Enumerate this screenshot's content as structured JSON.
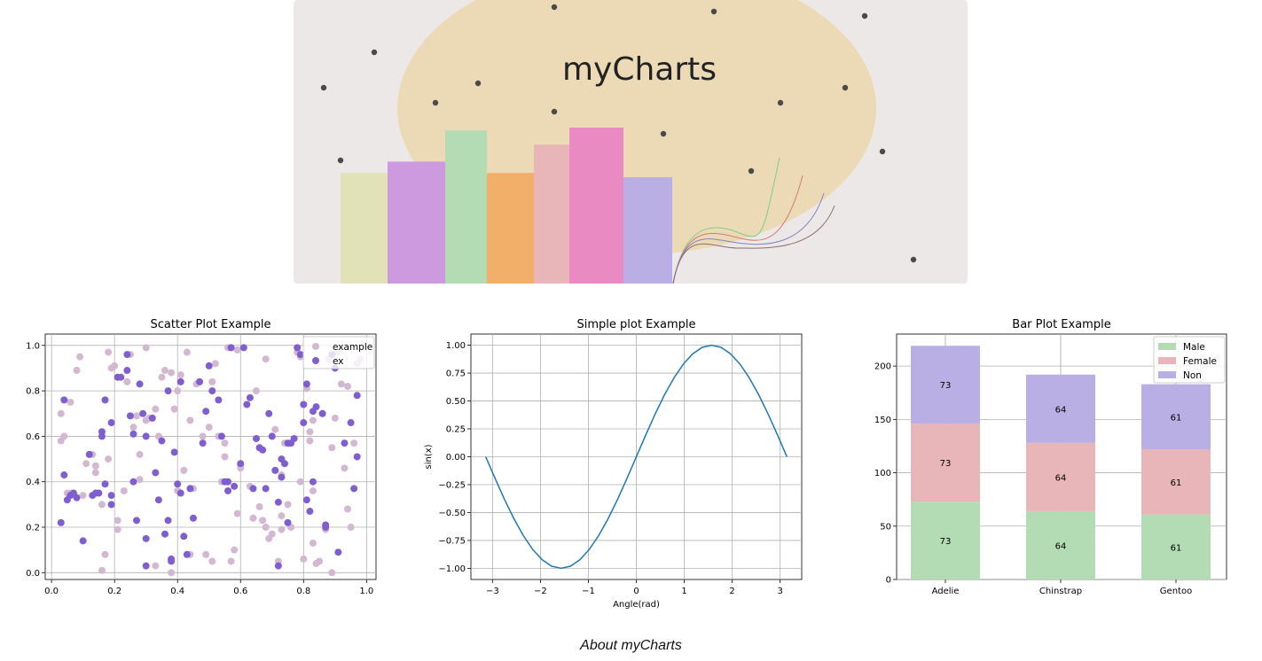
{
  "banner": {
    "title": "myCharts",
    "colors": {
      "background": "#ede8e8",
      "ellipse": "#ecdab6"
    },
    "bars": [
      {
        "value": 0.39,
        "color": "#e2e2b8"
      },
      {
        "value": 0.43,
        "color": "#cd99df"
      },
      {
        "value": 0.54,
        "color": "#b3dcb4"
      },
      {
        "value": 0.39,
        "color": "#f1af6a"
      },
      {
        "value": 0.49,
        "color": "#e8b6b8"
      },
      {
        "value": 0.55,
        "color": "#e98ac3"
      },
      {
        "value": 0.375,
        "color": "#b9afe4"
      }
    ],
    "curve_colors": [
      "#7ccf86",
      "#d17a78",
      "#8580c2",
      "#8c6a74"
    ]
  },
  "chart_data": [
    {
      "type": "scatter",
      "title": "Scatter Plot Example",
      "xlim": [
        -0.02,
        1.03
      ],
      "ylim": [
        -0.03,
        1.05
      ],
      "xticks": [
        0.0,
        0.2,
        0.4,
        0.6,
        0.8,
        1.0
      ],
      "yticks": [
        0.0,
        0.2,
        0.4,
        0.6,
        0.8,
        1.0
      ],
      "xtick_labels": [
        "0.0",
        "0.2",
        "0.4",
        "0.6",
        "0.8",
        "1.0"
      ],
      "ytick_labels": [
        "0.0",
        "0.2",
        "0.4",
        "0.6",
        "0.8",
        "1.0"
      ],
      "grid": true,
      "legend": "top-right",
      "series": [
        {
          "name": "example",
          "color": "#d3b8d2",
          "points": [
            [
              0.03,
              0.58
            ],
            [
              0.03,
              0.7
            ],
            [
              0.04,
              0.6
            ],
            [
              0.05,
              0.35
            ],
            [
              0.06,
              0.35
            ],
            [
              0.06,
              0.75
            ],
            [
              0.08,
              0.89
            ],
            [
              0.09,
              0.95
            ],
            [
              0.1,
              0.34
            ],
            [
              0.11,
              0.48
            ],
            [
              0.13,
              0.52
            ],
            [
              0.14,
              0.47
            ],
            [
              0.14,
              0.44
            ],
            [
              0.16,
              0.01
            ],
            [
              0.16,
              0.3
            ],
            [
              0.17,
              0.08
            ],
            [
              0.18,
              0.5
            ],
            [
              0.18,
              0.97
            ],
            [
              0.19,
              0.9
            ],
            [
              0.2,
              0.91
            ],
            [
              0.21,
              0.23
            ],
            [
              0.21,
              0.19
            ],
            [
              0.23,
              0.36
            ],
            [
              0.24,
              0.84
            ],
            [
              0.25,
              0.96
            ],
            [
              0.26,
              0.64
            ],
            [
              0.27,
              0.69
            ],
            [
              0.28,
              0.41
            ],
            [
              0.28,
              0.52
            ],
            [
              0.3,
              0.67
            ],
            [
              0.3,
              0.99
            ],
            [
              0.31,
              0.68
            ],
            [
              0.33,
              0.03
            ],
            [
              0.33,
              0.72
            ],
            [
              0.34,
              0.6
            ],
            [
              0.35,
              0.86
            ],
            [
              0.36,
              0.89
            ],
            [
              0.38,
              0.0
            ],
            [
              0.38,
              0.88
            ],
            [
              0.39,
              0.72
            ],
            [
              0.4,
              0.36
            ],
            [
              0.4,
              0.8
            ],
            [
              0.41,
              0.87
            ],
            [
              0.42,
              0.45
            ],
            [
              0.43,
              0.97
            ],
            [
              0.44,
              0.67
            ],
            [
              0.44,
              0.08
            ],
            [
              0.45,
              0.37
            ],
            [
              0.46,
              0.83
            ],
            [
              0.48,
              0.6
            ],
            [
              0.49,
              0.08
            ],
            [
              0.5,
              0.64
            ],
            [
              0.51,
              0.84
            ],
            [
              0.51,
              0.05
            ],
            [
              0.52,
              0.92
            ],
            [
              0.53,
              0.6
            ],
            [
              0.54,
              0.4
            ],
            [
              0.55,
              0.57
            ],
            [
              0.55,
              0.51
            ],
            [
              0.56,
              0.99
            ],
            [
              0.57,
              0.05
            ],
            [
              0.58,
              0.1
            ],
            [
              0.59,
              0.26
            ],
            [
              0.59,
              0.98
            ],
            [
              0.6,
              0.46
            ],
            [
              0.6,
              0.47
            ],
            [
              0.63,
              0.38
            ],
            [
              0.64,
              0.24
            ],
            [
              0.65,
              0.8
            ],
            [
              0.66,
              0.29
            ],
            [
              0.67,
              0.23
            ],
            [
              0.68,
              0.2
            ],
            [
              0.68,
              0.94
            ],
            [
              0.69,
              0.15
            ],
            [
              0.7,
              0.17
            ],
            [
              0.71,
              0.63
            ],
            [
              0.72,
              0.05
            ],
            [
              0.73,
              0.19
            ],
            [
              0.73,
              0.25
            ],
            [
              0.73,
              0.43
            ],
            [
              0.74,
              0.57
            ],
            [
              0.75,
              0.3
            ],
            [
              0.76,
              0.2
            ],
            [
              0.78,
              0.97
            ],
            [
              0.79,
              0.95
            ],
            [
              0.79,
              0.4
            ],
            [
              0.8,
              0.06
            ],
            [
              0.81,
              0.81
            ],
            [
              0.82,
              0.58
            ],
            [
              0.82,
              0.62
            ],
            [
              0.83,
              0.13
            ],
            [
              0.83,
              0.36
            ],
            [
              0.83,
              0.67
            ],
            [
              0.84,
              0.04
            ],
            [
              0.85,
              0.05
            ],
            [
              0.86,
              0.7
            ],
            [
              0.87,
              0.19
            ],
            [
              0.88,
              0.94
            ],
            [
              0.89,
              0.0
            ],
            [
              0.89,
              0.55
            ],
            [
              0.9,
              0.68
            ],
            [
              0.91,
              0.97
            ],
            [
              0.92,
              0.83
            ],
            [
              0.93,
              0.46
            ],
            [
              0.94,
              0.28
            ],
            [
              0.94,
              0.82
            ],
            [
              0.95,
              0.2
            ],
            [
              0.96,
              0.57
            ],
            [
              0.97,
              0.92
            ],
            [
              0.98,
              0.94
            ]
          ]
        },
        {
          "name": "ex",
          "color": "#7f5fd0",
          "points": [
            [
              0.03,
              0.22
            ],
            [
              0.04,
              0.43
            ],
            [
              0.04,
              0.76
            ],
            [
              0.05,
              0.32
            ],
            [
              0.06,
              0.34
            ],
            [
              0.07,
              0.35
            ],
            [
              0.08,
              0.33
            ],
            [
              0.1,
              0.14
            ],
            [
              0.12,
              0.52
            ],
            [
              0.13,
              0.34
            ],
            [
              0.14,
              0.35
            ],
            [
              0.15,
              0.35
            ],
            [
              0.16,
              0.6
            ],
            [
              0.16,
              0.62
            ],
            [
              0.17,
              0.39
            ],
            [
              0.17,
              0.76
            ],
            [
              0.19,
              0.34
            ],
            [
              0.19,
              0.66
            ],
            [
              0.19,
              0.3
            ],
            [
              0.21,
              0.86
            ],
            [
              0.22,
              0.86
            ],
            [
              0.24,
              0.96
            ],
            [
              0.24,
              0.89
            ],
            [
              0.25,
              0.69
            ],
            [
              0.26,
              0.61
            ],
            [
              0.26,
              0.4
            ],
            [
              0.27,
              0.23
            ],
            [
              0.28,
              0.83
            ],
            [
              0.29,
              0.7
            ],
            [
              0.3,
              0.6
            ],
            [
              0.3,
              0.15
            ],
            [
              0.3,
              0.03
            ],
            [
              0.32,
              0.68
            ],
            [
              0.33,
              0.44
            ],
            [
              0.34,
              0.32
            ],
            [
              0.35,
              0.58
            ],
            [
              0.36,
              0.17
            ],
            [
              0.37,
              0.8
            ],
            [
              0.37,
              0.23
            ],
            [
              0.38,
              0.06
            ],
            [
              0.38,
              0.05
            ],
            [
              0.39,
              0.53
            ],
            [
              0.4,
              0.39
            ],
            [
              0.41,
              0.35
            ],
            [
              0.41,
              0.84
            ],
            [
              0.42,
              0.16
            ],
            [
              0.43,
              0.08
            ],
            [
              0.44,
              0.37
            ],
            [
              0.45,
              0.24
            ],
            [
              0.47,
              0.84
            ],
            [
              0.48,
              0.57
            ],
            [
              0.49,
              0.71
            ],
            [
              0.5,
              0.91
            ],
            [
              0.51,
              0.8
            ],
            [
              0.53,
              0.76
            ],
            [
              0.54,
              0.6
            ],
            [
              0.55,
              0.4
            ],
            [
              0.56,
              0.4
            ],
            [
              0.56,
              0.36
            ],
            [
              0.57,
              0.99
            ],
            [
              0.58,
              0.38
            ],
            [
              0.6,
              0.48
            ],
            [
              0.61,
              0.99
            ],
            [
              0.62,
              0.74
            ],
            [
              0.63,
              0.77
            ],
            [
              0.64,
              0.37
            ],
            [
              0.65,
              0.59
            ],
            [
              0.66,
              0.55
            ],
            [
              0.67,
              0.54
            ],
            [
              0.68,
              0.37
            ],
            [
              0.69,
              0.7
            ],
            [
              0.7,
              0.6
            ],
            [
              0.71,
              0.45
            ],
            [
              0.72,
              0.03
            ],
            [
              0.72,
              0.31
            ],
            [
              0.73,
              0.42
            ],
            [
              0.73,
              0.5
            ],
            [
              0.74,
              0.48
            ],
            [
              0.75,
              0.57
            ],
            [
              0.75,
              0.22
            ],
            [
              0.76,
              0.57
            ],
            [
              0.77,
              0.59
            ],
            [
              0.78,
              0.99
            ],
            [
              0.79,
              0.96
            ],
            [
              0.8,
              0.66
            ],
            [
              0.8,
              0.74
            ],
            [
              0.81,
              0.83
            ],
            [
              0.81,
              0.32
            ],
            [
              0.82,
              0.27
            ],
            [
              0.83,
              0.4
            ],
            [
              0.83,
              0.71
            ],
            [
              0.84,
              0.73
            ],
            [
              0.86,
              0.7
            ],
            [
              0.87,
              0.2
            ],
            [
              0.87,
              0.21
            ],
            [
              0.89,
              0.96
            ],
            [
              0.9,
              0.9
            ],
            [
              0.91,
              0.09
            ],
            [
              0.93,
              0.57
            ],
            [
              0.95,
              0.66
            ],
            [
              0.96,
              0.37
            ],
            [
              0.97,
              0.78
            ],
            [
              0.97,
              0.51
            ]
          ]
        }
      ]
    },
    {
      "type": "line",
      "title": "Simple plot Example",
      "xlabel": "Angle(rad)",
      "ylabel": "sin(x)",
      "xlim": [
        -3.45,
        3.45
      ],
      "ylim": [
        -1.1,
        1.1
      ],
      "xticks": [
        -3,
        -2,
        -1,
        0,
        1,
        2,
        3
      ],
      "yticks": [
        -1.0,
        -0.75,
        -0.5,
        -0.25,
        0.0,
        0.25,
        0.5,
        0.75,
        1.0
      ],
      "xtick_labels": [
        "−3",
        "−2",
        "−1",
        "0",
        "1",
        "2",
        "3"
      ],
      "ytick_labels": [
        "−1.00",
        "−0.75",
        "−0.50",
        "−0.25",
        "0.00",
        "0.25",
        "0.50",
        "0.75",
        "1.00"
      ],
      "grid": true,
      "series": [
        {
          "color": "#1f77b4",
          "x": [
            -3.1416,
            -2.9452,
            -2.7489,
            -2.5525,
            -2.3562,
            -2.1598,
            -1.9635,
            -1.7671,
            -1.5708,
            -1.3744,
            -1.1781,
            -0.9817,
            -0.7854,
            -0.589,
            -0.3927,
            -0.1963,
            0.0,
            0.1963,
            0.3927,
            0.589,
            0.7854,
            0.9817,
            1.1781,
            1.3744,
            1.5708,
            1.7671,
            1.9635,
            2.1598,
            2.3562,
            2.5525,
            2.7489,
            2.9452,
            3.1416
          ],
          "y": [
            0.0,
            -0.1951,
            -0.3827,
            -0.5556,
            -0.7071,
            -0.8315,
            -0.9239,
            -0.9808,
            -1.0,
            -0.9808,
            -0.9239,
            -0.8315,
            -0.7071,
            -0.5556,
            -0.3827,
            -0.1951,
            0.0,
            0.1951,
            0.3827,
            0.5556,
            0.7071,
            0.8315,
            0.9239,
            0.9808,
            1.0,
            0.9808,
            0.9239,
            0.8315,
            0.7071,
            0.5556,
            0.3827,
            0.1951,
            0.0
          ]
        }
      ]
    },
    {
      "type": "bar",
      "stacked": true,
      "title": "Bar Plot Example",
      "categories": [
        "Adelie",
        "Chinstrap",
        "Gentoo"
      ],
      "ylim": [
        0,
        230
      ],
      "yticks": [
        0,
        50,
        100,
        150,
        200
      ],
      "ytick_labels": [
        "0",
        "50",
        "100",
        "150",
        "200"
      ],
      "grid": true,
      "legend": "top-right",
      "series": [
        {
          "name": "Male",
          "color": "#b3dcb4",
          "values": [
            73,
            64,
            61
          ],
          "labels": [
            "73",
            "64",
            "61"
          ]
        },
        {
          "name": "Female",
          "color": "#e8b6b8",
          "values": [
            73,
            64,
            61
          ],
          "labels": [
            "73",
            "64",
            "61"
          ]
        },
        {
          "name": "Non",
          "color": "#b9afe4",
          "values": [
            73,
            64,
            61
          ],
          "labels": [
            "73",
            "64",
            "61"
          ]
        }
      ]
    }
  ],
  "footer": {
    "link_text": "About myCharts"
  }
}
